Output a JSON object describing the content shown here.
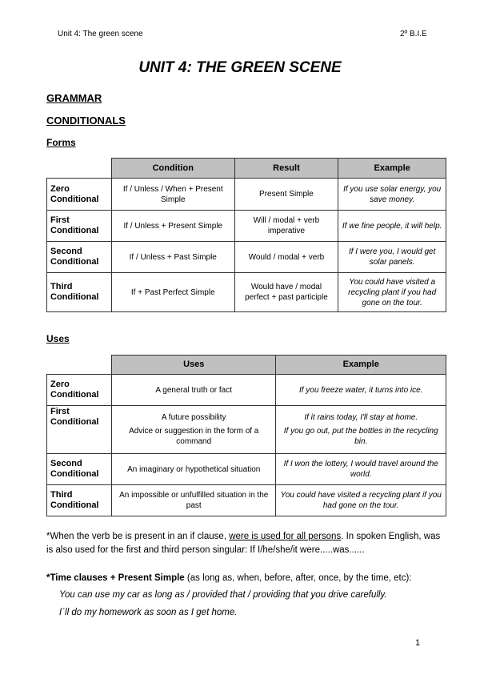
{
  "header": {
    "left": "Unit 4: The green scene",
    "right": "2º B.I.E"
  },
  "title": "UNIT 4: THE GREEN SCENE",
  "grammar": "GRAMMAR",
  "conditionals": "CONDITIONALS",
  "forms": {
    "label": "Forms",
    "headers": [
      "Condition",
      "Result",
      "Example"
    ],
    "rows": [
      {
        "type": "Zero Conditional",
        "condition": "If / Unless / When + Present Simple",
        "result": "Present Simple",
        "example": "If you use solar energy, you save money."
      },
      {
        "type": "First Conditional",
        "condition": "If / Unless  + Present Simple",
        "result": "Will / modal + verb imperative",
        "example": "If we fine people, it will help."
      },
      {
        "type": "Second Conditional",
        "condition": "If / Unless + Past Simple",
        "result": "Would / modal + verb",
        "example": "If I were you, I would get solar panels."
      },
      {
        "type": "Third Conditional",
        "condition": "If + Past Perfect Simple",
        "result": "Would have / modal perfect + past participle",
        "example": "You could have visited a recycling plant if you had gone on the tour."
      }
    ]
  },
  "uses": {
    "label": "Uses",
    "headers": [
      "Uses",
      "Example"
    ],
    "rows": [
      {
        "type": "Zero Conditional",
        "uses": [
          "A general truth or fact"
        ],
        "examples": [
          "If you freeze water, it turns into ice."
        ]
      },
      {
        "type": "First Conditional",
        "uses": [
          "A future possibility",
          "Advice or suggestion in the form of a command"
        ],
        "examples": [
          "If it rains today, I'll stay at home.",
          "If you go out, put the bottles in the recycling bin."
        ]
      },
      {
        "type": "Second Conditional",
        "uses": [
          "An imaginary or hypothetical situation"
        ],
        "examples": [
          "If I won the lottery, I would travel around the world."
        ]
      },
      {
        "type": "Third Conditional",
        "uses": [
          "An impossible or unfulfilled situation in the past"
        ],
        "examples": [
          "You could have visited a recycling plant if you had gone on the tour."
        ]
      }
    ]
  },
  "note1": {
    "before": "*When the verb be is present in an if clause, ",
    "underlined": "were is used for all persons",
    "after": ". In spoken English, was is also used for the first and third person singular: If I/he/she/it were.....was......"
  },
  "note2": {
    "bold": "*Time clauses + Present Simple",
    "rest": " (as long as, when, before, after, once, by the time, etc):",
    "examples": [
      "You can use my car as long as / provided that / providing that you drive carefully.",
      "I´ll do my homework as soon as I get home."
    ]
  },
  "page_number": "1"
}
